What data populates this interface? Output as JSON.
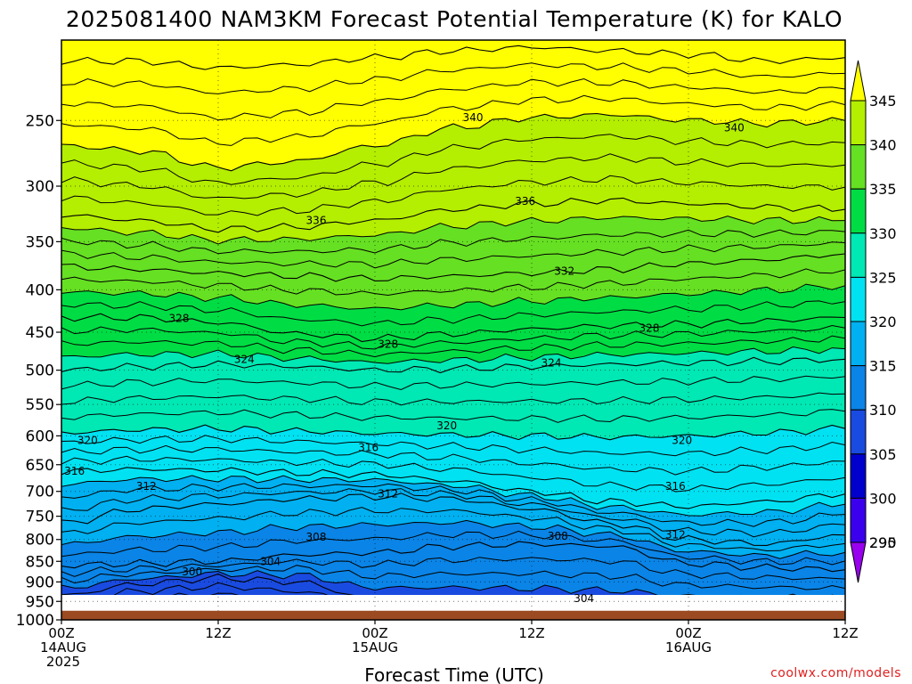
{
  "chart_data": {
    "type": "heatmap",
    "title": "2025081400 NAM3KM Forecast Potential Temperature (K) for KALO",
    "xlabel": "Forecast Time (UTC)",
    "ylabel": "",
    "credit": "coolwx.com/models",
    "yaxis_scale": "log",
    "ylim": [
      1000,
      200
    ],
    "yticks": [
      250,
      300,
      350,
      400,
      450,
      500,
      550,
      600,
      650,
      700,
      750,
      800,
      850,
      900,
      950,
      1000
    ],
    "xlim": [
      0,
      60
    ],
    "xticks": [
      {
        "hour": 0,
        "lines": [
          "00Z",
          "14AUG",
          "2025"
        ]
      },
      {
        "hour": 12,
        "lines": [
          "12Z"
        ]
      },
      {
        "hour": 24,
        "lines": [
          "00Z",
          "15AUG"
        ]
      },
      {
        "hour": 36,
        "lines": [
          "12Z"
        ]
      },
      {
        "hour": 48,
        "lines": [
          "00Z",
          "16AUG"
        ]
      },
      {
        "hour": 60,
        "lines": [
          "12Z"
        ]
      }
    ],
    "grid": true,
    "colorbar": {
      "position": "right",
      "levels": [
        290,
        295,
        300,
        305,
        310,
        315,
        320,
        325,
        330,
        335,
        340,
        345
      ],
      "colors": [
        "#9900ee",
        "#3a00ee",
        "#0000cc",
        "#1a4be0",
        "#0a84e6",
        "#00b0f0",
        "#00e2f2",
        "#00e8b4",
        "#00dd44",
        "#66e022",
        "#b4ee00",
        "#ffff00"
      ]
    },
    "surface_pressure": 975,
    "terrain_color": "#9b4a21",
    "times": [
      0,
      6,
      12,
      18,
      24,
      30,
      36,
      42,
      48,
      54,
      60
    ],
    "contours": [
      {
        "value": 300,
        "labeled": true,
        "pressures": [
          1000,
          980,
          975,
          1000,
          1000,
          985,
          1000,
          1000,
          1000,
          1000,
          1000
        ]
      },
      {
        "value": 304,
        "labeled": true,
        "pressures": [
          935,
          905,
          890,
          900,
          945,
          950,
          955,
          960,
          965,
          965,
          965
        ]
      },
      {
        "value": 308,
        "labeled": true,
        "pressures": [
          860,
          855,
          850,
          835,
          830,
          815,
          810,
          815,
          855,
          865,
          870
        ]
      },
      {
        "value": 312,
        "labeled": true,
        "pressures": [
          765,
          735,
          725,
          715,
          710,
          715,
          735,
          765,
          800,
          810,
          790
        ]
      },
      {
        "value": 316,
        "labeled": true,
        "pressures": [
          662,
          658,
          660,
          665,
          668,
          680,
          700,
          720,
          730,
          720,
          705
        ]
      },
      {
        "value": 320,
        "labeled": true,
        "pressures": [
          595,
          590,
          588,
          592,
          596,
          598,
          600,
          602,
          600,
          595,
          588
        ]
      },
      {
        "value": 324,
        "labeled": true,
        "pressures": [
          500,
          495,
          492,
          495,
          500,
          498,
          495,
          492,
          490,
          488,
          485
        ]
      },
      {
        "value": 328,
        "labeled": true,
        "pressures": [
          432,
          432,
          438,
          452,
          458,
          452,
          446,
          442,
          440,
          436,
          432
        ]
      },
      {
        "value": 332,
        "labeled": true,
        "pressures": [
          375,
          378,
          382,
          385,
          388,
          385,
          382,
          378,
          372,
          368,
          362
        ]
      },
      {
        "value": 336,
        "labeled": true,
        "pressures": [
          325,
          330,
          338,
          336,
          330,
          320,
          315,
          312,
          315,
          318,
          320
        ]
      },
      {
        "value": 340,
        "labeled": true,
        "pressures": [
          268,
          272,
          285,
          280,
          268,
          255,
          248,
          246,
          250,
          252,
          250
        ]
      },
      {
        "value": 344,
        "labeled": false,
        "pressures": [
          212,
          212,
          216,
          214,
          210,
          206,
          204,
          206,
          208,
          212,
          210
        ]
      }
    ],
    "contour_labels": [
      {
        "text": "340",
        "hour": 31.5,
        "pressure": 248
      },
      {
        "text": "340",
        "hour": 51.5,
        "pressure": 255
      },
      {
        "text": "336",
        "hour": 35.5,
        "pressure": 313
      },
      {
        "text": "336",
        "hour": 19.5,
        "pressure": 330
      },
      {
        "text": "332",
        "hour": 38.5,
        "pressure": 380
      },
      {
        "text": "328",
        "hour": 9,
        "pressure": 433
      },
      {
        "text": "328",
        "hour": 45,
        "pressure": 445
      },
      {
        "text": "328",
        "hour": 25,
        "pressure": 465
      },
      {
        "text": "324",
        "hour": 14,
        "pressure": 485
      },
      {
        "text": "324",
        "hour": 37.5,
        "pressure": 490
      },
      {
        "text": "320",
        "hour": 29.5,
        "pressure": 583
      },
      {
        "text": "320",
        "hour": 2,
        "pressure": 608
      },
      {
        "text": "320",
        "hour": 47.5,
        "pressure": 608
      },
      {
        "text": "316",
        "hour": 23.5,
        "pressure": 620
      },
      {
        "text": "316",
        "hour": 1,
        "pressure": 662
      },
      {
        "text": "316",
        "hour": 47,
        "pressure": 690
      },
      {
        "text": "312",
        "hour": 6.5,
        "pressure": 690
      },
      {
        "text": "312",
        "hour": 25,
        "pressure": 705
      },
      {
        "text": "312",
        "hour": 47,
        "pressure": 790
      },
      {
        "text": "308",
        "hour": 19.5,
        "pressure": 795
      },
      {
        "text": "308",
        "hour": 38,
        "pressure": 793
      },
      {
        "text": "304",
        "hour": 16,
        "pressure": 850
      },
      {
        "text": "304",
        "hour": 40,
        "pressure": 942
      },
      {
        "text": "300",
        "hour": 10,
        "pressure": 875
      }
    ]
  }
}
